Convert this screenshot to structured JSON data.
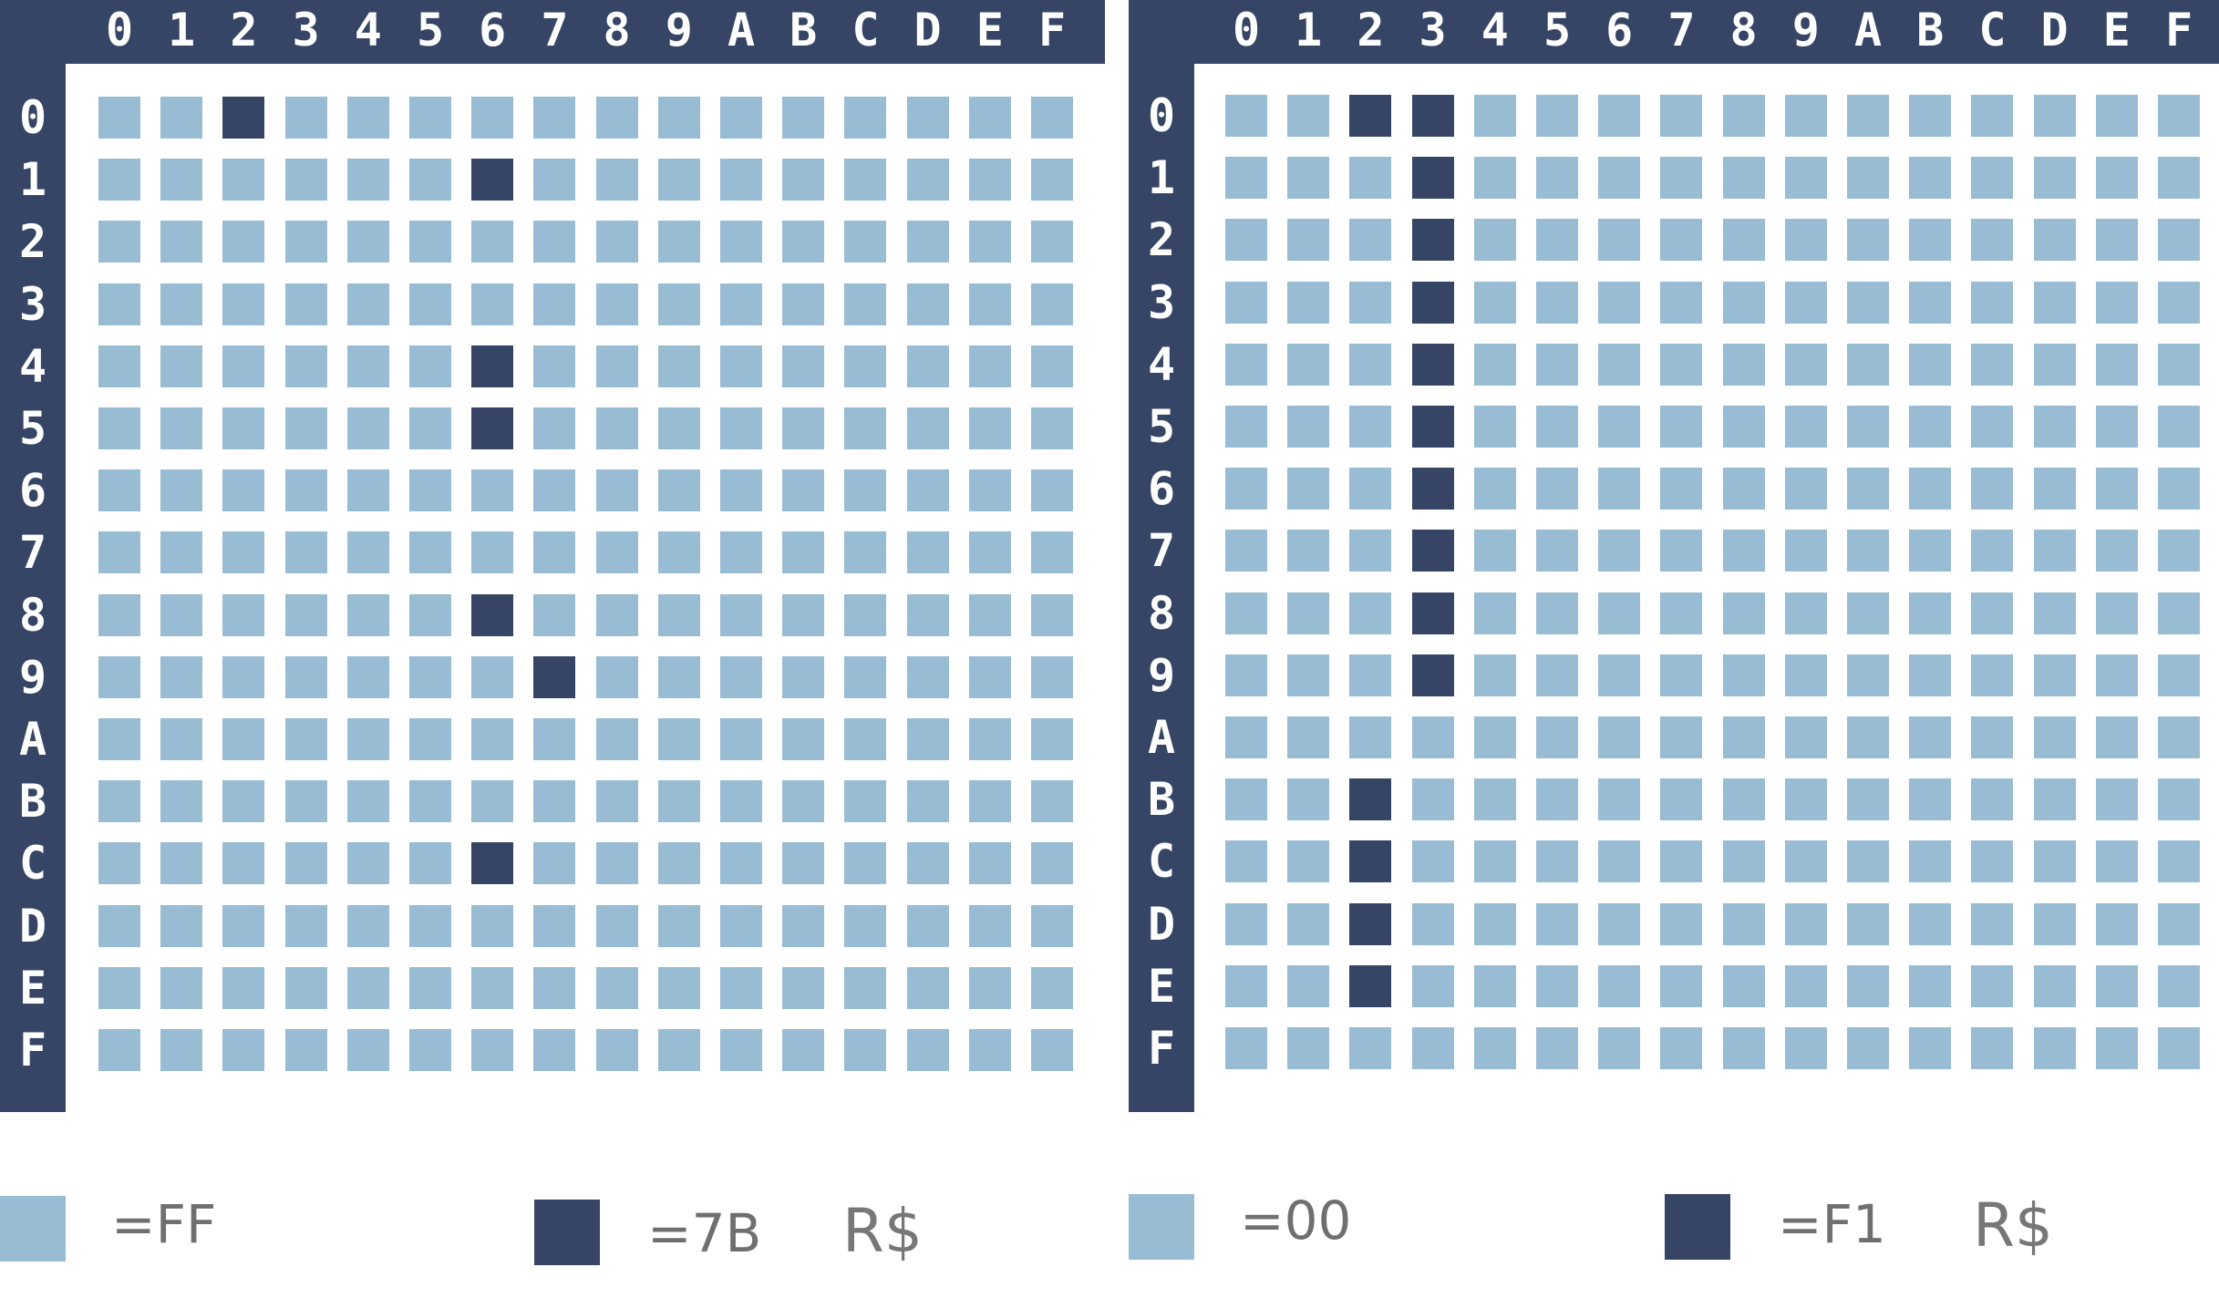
{
  "hex_digits": [
    "0",
    "1",
    "2",
    "3",
    "4",
    "5",
    "6",
    "7",
    "8",
    "9",
    "A",
    "B",
    "C",
    "D",
    "E",
    "F"
  ],
  "colors": {
    "light": "#98bcd3",
    "dark": "#364565",
    "frame": "#364565"
  },
  "grids": [
    {
      "name": "left",
      "highlighted_cells": [
        [
          0,
          2
        ],
        [
          1,
          6
        ],
        [
          4,
          6
        ],
        [
          5,
          6
        ],
        [
          8,
          6
        ],
        [
          9,
          7
        ],
        [
          12,
          6
        ]
      ],
      "legend": {
        "light_label": "=FF",
        "dark_label": "=7B",
        "currency": "R$"
      }
    },
    {
      "name": "right",
      "highlighted_cells": [
        [
          0,
          2
        ],
        [
          0,
          3
        ],
        [
          1,
          3
        ],
        [
          2,
          3
        ],
        [
          3,
          3
        ],
        [
          4,
          3
        ],
        [
          5,
          3
        ],
        [
          6,
          3
        ],
        [
          7,
          3
        ],
        [
          8,
          3
        ],
        [
          9,
          3
        ],
        [
          11,
          2
        ],
        [
          12,
          2
        ],
        [
          13,
          2
        ],
        [
          14,
          2
        ]
      ],
      "legend": {
        "light_label": "=00",
        "dark_label": "=F1",
        "currency": "R$"
      }
    }
  ]
}
